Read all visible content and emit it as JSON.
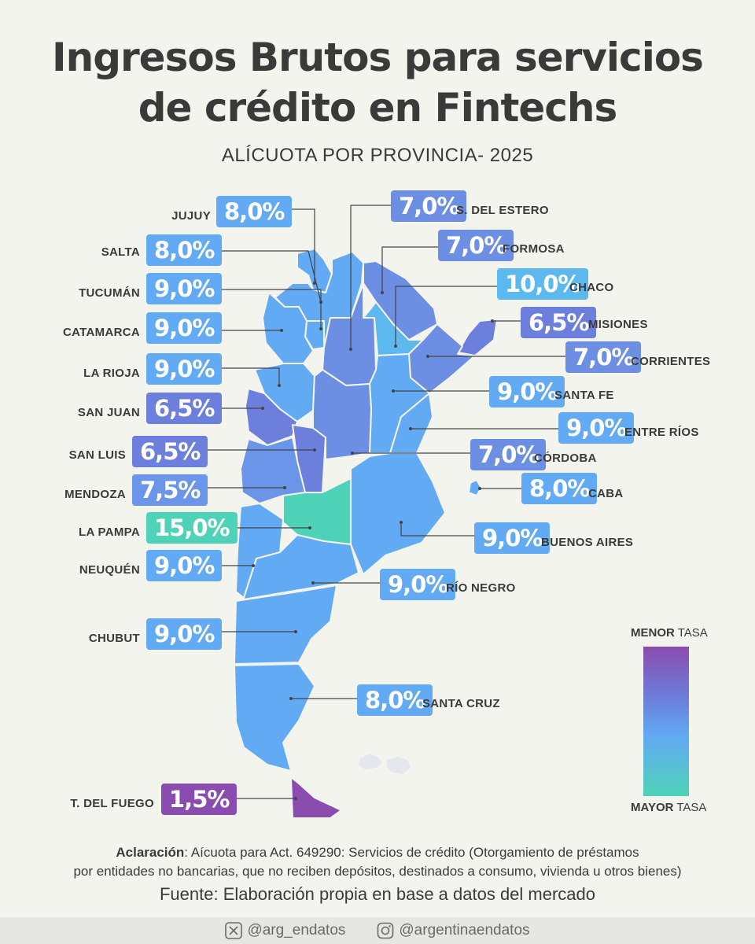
{
  "title_line1": "Ingresos Brutos para servicios",
  "title_line2": "de crédito en Fintechs",
  "subtitle": "ALÍCUOTA POR PROVINCIA- 2025",
  "colors": {
    "lowest": "#8b4cb0",
    "low": "#6c7fdc",
    "mid": "#62aaf3",
    "high": "#4fd3b8"
  },
  "provinces": [
    {
      "name": "JUJUY",
      "rate": "8,0%",
      "color": "#62aaf3"
    },
    {
      "name": "SALTA",
      "rate": "8,0%",
      "color": "#62aaf3"
    },
    {
      "name": "TUCUMÁN",
      "rate": "9,0%",
      "color": "#62aaf3"
    },
    {
      "name": "CATAMARCA",
      "rate": "9,0%",
      "color": "#62aaf3"
    },
    {
      "name": "LA RIOJA",
      "rate": "9,0%",
      "color": "#62aaf3"
    },
    {
      "name": "SAN JUAN",
      "rate": "6,5%",
      "color": "#6c7fdc"
    },
    {
      "name": "SAN LUIS",
      "rate": "6,5%",
      "color": "#6c7fdc"
    },
    {
      "name": "MENDOZA",
      "rate": "7,5%",
      "color": "#6b95e8"
    },
    {
      "name": "LA PAMPA",
      "rate": "15,0%",
      "color": "#4fd3b8"
    },
    {
      "name": "NEUQUÉN",
      "rate": "9,0%",
      "color": "#62aaf3"
    },
    {
      "name": "CHUBUT",
      "rate": "9,0%",
      "color": "#62aaf3"
    },
    {
      "name": "T. DEL FUEGO",
      "rate": "1,5%",
      "color": "#8b4cb0"
    },
    {
      "name": "S. DEL ESTERO",
      "rate": "7,0%",
      "color": "#6c8fe3"
    },
    {
      "name": "FORMOSA",
      "rate": "7,0%",
      "color": "#6c8fe3"
    },
    {
      "name": "CHACO",
      "rate": "10,0%",
      "color": "#5cb9f0"
    },
    {
      "name": "MISIONES",
      "rate": "6,5%",
      "color": "#6c7fdc"
    },
    {
      "name": "CORRIENTES",
      "rate": "7,0%",
      "color": "#6c8fe3"
    },
    {
      "name": "SANTA FE",
      "rate": "9,0%",
      "color": "#62aaf3"
    },
    {
      "name": "ENTRE RÍOS",
      "rate": "9,0%",
      "color": "#62aaf3"
    },
    {
      "name": "CÓRDOBA",
      "rate": "7,0%",
      "color": "#6c8fe3"
    },
    {
      "name": "CABA",
      "rate": "8,0%",
      "color": "#62aaf3"
    },
    {
      "name": "BUENOS AIRES",
      "rate": "9,0%",
      "color": "#62aaf3"
    },
    {
      "name": "RÍO NEGRO",
      "rate": "9,0%",
      "color": "#62aaf3"
    },
    {
      "name": "SANTA CRUZ",
      "rate": "8,0%",
      "color": "#62aaf3"
    }
  ],
  "legend": {
    "top_bold": "MENOR",
    "top_rest": " TASA",
    "bottom_bold": "MAYOR",
    "bottom_rest": " TASA"
  },
  "note": {
    "bold": "Aclaración",
    "line1_rest": ": Aícuota para Act. 649290: Servicios de crédito (Otorgamiento de préstamos",
    "line2": "por entidades no bancarias, que no reciben depósitos, destinados a consumo, vivienda u otros bienes)"
  },
  "source": "Fuente: Elaboración propia en base a datos del mercado",
  "footer": {
    "twitter_handle": "@arg_endatos",
    "instagram_handle": "@argentinaendatos",
    "twitter_icon": "x-logo-icon",
    "instagram_icon": "instagram-icon"
  }
}
